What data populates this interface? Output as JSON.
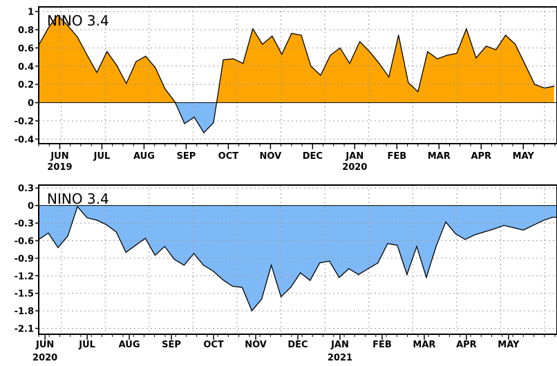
{
  "chart_data": [
    {
      "type": "area",
      "title": "NINO 3.4",
      "ylim": [
        -0.45,
        1.05
      ],
      "yticks": [
        1,
        0.8,
        0.6,
        0.4,
        0.2,
        0,
        -0.2,
        -0.4
      ],
      "ytick_labels": [
        "1",
        "0.8",
        "0.6",
        "0.4",
        "0.2",
        "0",
        "-0.2",
        "-0.4"
      ],
      "xlim": [
        0,
        12.3
      ],
      "month_labels": [
        "JUN",
        "JUL",
        "AUG",
        "SEP",
        "OCT",
        "NOV",
        "DEC",
        "JAN",
        "FEB",
        "MAR",
        "APR",
        "MAY"
      ],
      "month_positions": [
        0.5,
        1.5,
        2.5,
        3.5,
        4.5,
        5.5,
        6.5,
        7.5,
        8.5,
        9.5,
        10.5,
        11.5
      ],
      "year_labels": [
        {
          "text": "2019",
          "month_index": 0
        },
        {
          "text": "2020",
          "month_index": 7
        }
      ],
      "positive_color": "#ffa500",
      "negative_color": "#7eb9f7",
      "grid": true,
      "series": [
        {
          "x": [
            0.0,
            0.23,
            0.45,
            0.68,
            0.92,
            1.15,
            1.38,
            1.62,
            1.85,
            2.08,
            2.31,
            2.54,
            2.77,
            3.0,
            3.23,
            3.46,
            3.69,
            3.92,
            4.15,
            4.38,
            4.62,
            4.85,
            5.08,
            5.31,
            5.54,
            5.77,
            6.0,
            6.23,
            6.46,
            6.69,
            6.92,
            7.15,
            7.38,
            7.62,
            7.85,
            8.08,
            8.31,
            8.54,
            8.77,
            9.0,
            9.23,
            9.46,
            9.69,
            9.92,
            10.15,
            10.38,
            10.62,
            10.85,
            11.08,
            11.31,
            11.54,
            11.77,
            12.0,
            12.23
          ],
          "values": [
            0.63,
            0.82,
            0.96,
            0.85,
            0.72,
            0.52,
            0.33,
            0.56,
            0.41,
            0.21,
            0.45,
            0.51,
            0.38,
            0.15,
            0.01,
            -0.23,
            -0.16,
            -0.33,
            -0.22,
            0.47,
            0.48,
            0.43,
            0.81,
            0.64,
            0.73,
            0.53,
            0.76,
            0.74,
            0.4,
            0.3,
            0.52,
            0.6,
            0.43,
            0.67,
            0.56,
            0.43,
            0.28,
            0.74,
            0.22,
            0.12,
            0.56,
            0.48,
            0.52,
            0.54,
            0.81,
            0.49,
            0.62,
            0.58,
            0.74,
            0.64,
            0.42,
            0.2,
            0.16,
            0.18
          ]
        }
      ]
    },
    {
      "type": "area",
      "title": "NINO 3.4",
      "ylim": [
        -2.2,
        0.35
      ],
      "yticks": [
        0.3,
        0,
        -0.3,
        -0.6,
        -0.9,
        -1.2,
        -1.5,
        -1.8,
        -2.1
      ],
      "ytick_labels": [
        "0.3",
        "0",
        "-0.3",
        "-0.6",
        "-0.9",
        "-1.2",
        "-1.5",
        "-1.8",
        "-2.1"
      ],
      "xlim": [
        0,
        12.3
      ],
      "month_labels": [
        "JUN",
        "JUL",
        "AUG",
        "SEP",
        "OCT",
        "NOV",
        "DEC",
        "JAN",
        "FEB",
        "MAR",
        "APR",
        "MAY"
      ],
      "month_positions": [
        0.15,
        1.15,
        2.15,
        3.15,
        4.15,
        5.15,
        6.15,
        7.15,
        8.15,
        9.15,
        10.15,
        11.15
      ],
      "year_labels": [
        {
          "text": "2020",
          "month_index": 0
        },
        {
          "text": "2021",
          "month_index": 7
        }
      ],
      "positive_color": "#ffa500",
      "negative_color": "#7eb9f7",
      "grid": true,
      "series": [
        {
          "x": [
            0.0,
            0.23,
            0.46,
            0.69,
            0.92,
            1.15,
            1.38,
            1.61,
            1.84,
            2.07,
            2.3,
            2.53,
            2.76,
            2.99,
            3.22,
            3.45,
            3.68,
            3.91,
            4.14,
            4.37,
            4.6,
            4.83,
            5.06,
            5.29,
            5.52,
            5.75,
            5.98,
            6.21,
            6.44,
            6.67,
            6.9,
            7.13,
            7.36,
            7.59,
            7.82,
            8.05,
            8.28,
            8.51,
            8.74,
            8.97,
            9.2,
            9.43,
            9.66,
            9.89,
            10.12,
            10.35,
            10.58,
            10.81,
            11.04,
            11.27,
            11.5,
            11.73,
            11.96,
            12.19,
            12.3
          ],
          "values": [
            -0.58,
            -0.47,
            -0.72,
            -0.52,
            -0.02,
            -0.21,
            -0.25,
            -0.33,
            -0.45,
            -0.8,
            -0.68,
            -0.56,
            -0.85,
            -0.7,
            -0.92,
            -1.02,
            -0.82,
            -1.02,
            -1.12,
            -1.27,
            -1.38,
            -1.4,
            -1.8,
            -1.6,
            -1.02,
            -1.56,
            -1.4,
            -1.15,
            -1.28,
            -0.98,
            -0.95,
            -1.23,
            -1.08,
            -1.18,
            -1.08,
            -0.98,
            -0.65,
            -0.68,
            -1.18,
            -0.7,
            -1.23,
            -0.7,
            -0.28,
            -0.48,
            -0.58,
            -0.5,
            -0.45,
            -0.4,
            -0.34,
            -0.38,
            -0.42,
            -0.34,
            -0.26,
            -0.2,
            -0.2
          ]
        }
      ]
    }
  ]
}
